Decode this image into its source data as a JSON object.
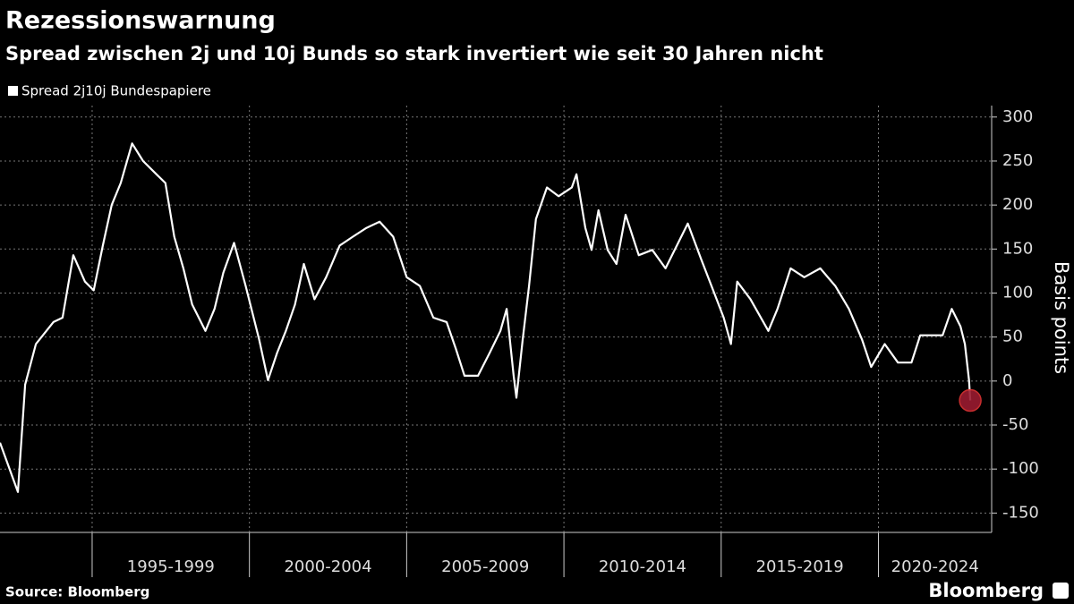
{
  "chart_data": {
    "type": "line",
    "title": "Rezessionswarnung",
    "subtitle": "Spread zwischen 2j und 10j Bunds so stark invertiert wie seit 30 Jahren nicht",
    "y_axis_label": "Basis points",
    "source": "Source: Bloomberg",
    "brand": "Bloomberg",
    "series": [
      {
        "name": "Spread 2j10j Bundespapiere",
        "color": "#ffffff",
        "x": [
          1992.07,
          1992.64,
          1992.87,
          1993.21,
          1993.77,
          1994.06,
          1994.4,
          1994.77,
          1995.05,
          1995.34,
          1995.62,
          1995.91,
          1996.27,
          1996.62,
          1997.04,
          1997.33,
          1997.61,
          1997.9,
          1998.18,
          1998.6,
          1998.89,
          1999.17,
          1999.51,
          1999.88,
          2000.31,
          2000.59,
          2000.88,
          2001.16,
          2001.45,
          2001.73,
          2002.07,
          2002.44,
          2002.87,
          2003.29,
          2003.72,
          2004.14,
          2004.57,
          2005.0,
          2005.42,
          2005.85,
          2006.27,
          2006.56,
          2006.84,
          2007.27,
          2007.64,
          2007.98,
          2008.18,
          2008.4,
          2008.49,
          2008.69,
          2008.89,
          2009.11,
          2009.46,
          2009.83,
          2010.25,
          2010.4,
          2010.68,
          2010.88,
          2011.1,
          2011.39,
          2011.67,
          2011.96,
          2012.38,
          2012.81,
          2013.23,
          2013.66,
          2013.94,
          2014.37,
          2014.8,
          2015.08,
          2015.31,
          2015.51,
          2015.93,
          2016.5,
          2016.79,
          2017.21,
          2017.64,
          2018.15,
          2018.63,
          2019.06,
          2019.48,
          2019.77,
          2020.2,
          2020.62,
          2021.05,
          2021.33,
          2021.76,
          2022.04,
          2022.33,
          2022.61,
          2022.75,
          2022.88,
          2022.92
        ],
        "values": [
          -70,
          -126,
          -4,
          42,
          67,
          72,
          143,
          113,
          103,
          154,
          200,
          225,
          270,
          250,
          235,
          225,
          164,
          128,
          87,
          57,
          82,
          123,
          157,
          108,
          47,
          1,
          32,
          57,
          87,
          133,
          93,
          118,
          154,
          164,
          174,
          181,
          164,
          118,
          108,
          72,
          67,
          37,
          6,
          6,
          32,
          57,
          82,
          6,
          -19,
          47,
          108,
          184,
          220,
          210,
          220,
          235,
          174,
          149,
          194,
          149,
          133,
          189,
          143,
          149,
          128,
          159,
          179,
          138,
          98,
          72,
          42,
          113,
          93,
          57,
          82,
          128,
          118,
          128,
          108,
          82,
          47,
          16,
          42,
          21,
          21,
          52,
          52,
          52,
          82,
          62,
          42,
          1,
          -22
        ]
      }
    ],
    "highlight_last": true,
    "highlight_color": "#9b1b30",
    "xlim": [
      1992.07,
      2023.6
    ],
    "xticks": [
      1995,
      2000,
      2005,
      2010,
      2015,
      2020
    ],
    "x_periods": [
      "1995-1999",
      "2000-2004",
      "2005-2009",
      "2010-2014",
      "2015-2019",
      "2020-2024"
    ],
    "ylim": [
      -172,
      313
    ],
    "yticks": [
      300,
      250,
      200,
      150,
      100,
      50,
      0,
      -50,
      -100,
      -150
    ],
    "grid": true,
    "legend": "top-left"
  }
}
